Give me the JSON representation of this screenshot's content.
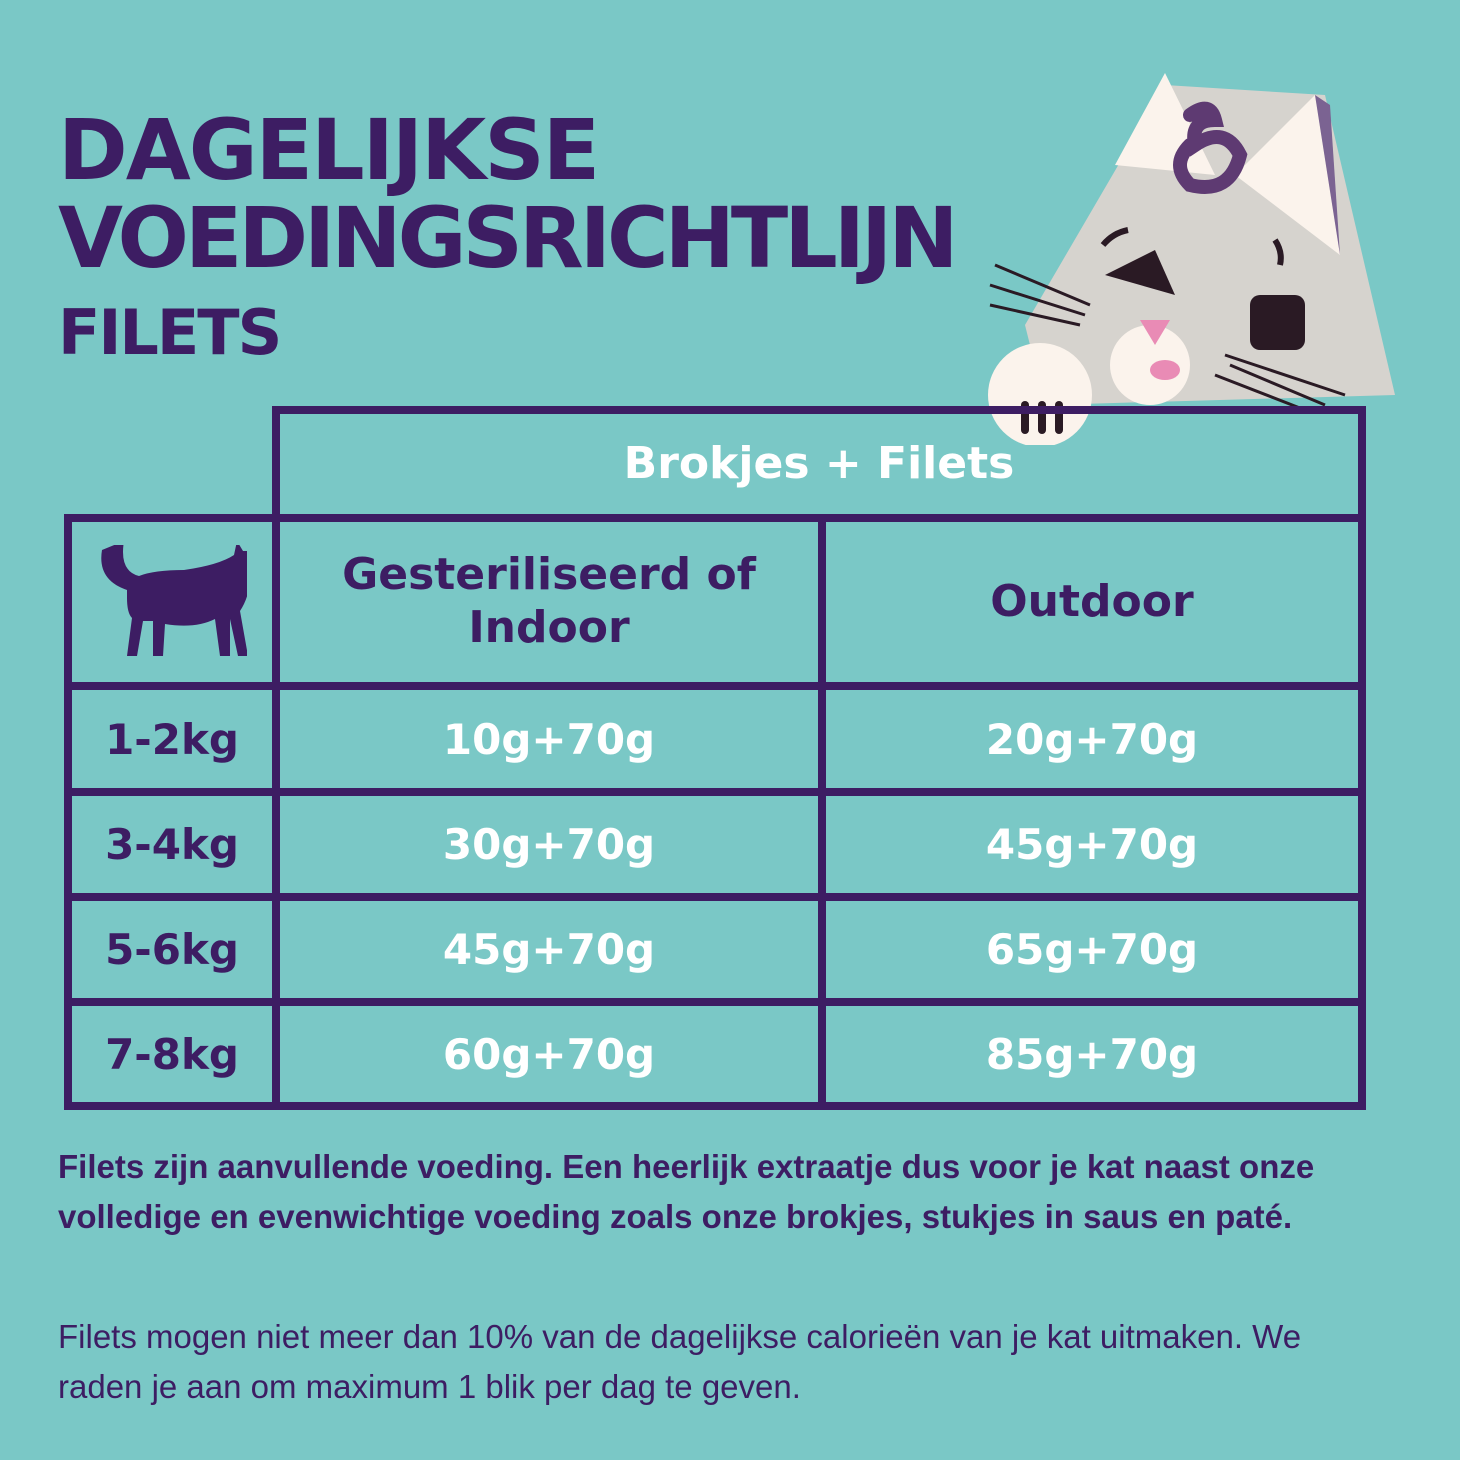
{
  "title": {
    "line1": "DAGELIJKSE",
    "line2": "VOEDINGSRICHTLIJN",
    "subtitle": "FILETS"
  },
  "table": {
    "group_header": "Brokjes + Filets",
    "columns": [
      "Gesteriliseerd of Indoor",
      "Outdoor"
    ],
    "corner_icon": "cat-silhouette-icon",
    "rows": [
      {
        "weight": "1-2kg",
        "indoor": "10g+70g",
        "outdoor": "20g+70g"
      },
      {
        "weight": "3-4kg",
        "indoor": "30g+70g",
        "outdoor": "45g+70g"
      },
      {
        "weight": "5-6kg",
        "indoor": "45g+70g",
        "outdoor": "65g+70g"
      },
      {
        "weight": "7-8kg",
        "indoor": "60g+70g",
        "outdoor": "85g+70g"
      }
    ]
  },
  "notes": [
    "Filets zijn aanvullende voeding. Een heerlijk extraatje dus voor je kat naast onze volledige en evenwichtige voeding zoals onze brokjes, stukjes in saus en paté.",
    "Filets mogen niet meer dan 10% van de dagelijkse calorieën van je kat uitmaken. We raden je aan om maximum 1 blik per dag te geven."
  ],
  "logo_letter": "&",
  "colors": {
    "background": "#7ac8c6",
    "accent": "#3d1d63",
    "value_text": "#ffffff"
  }
}
